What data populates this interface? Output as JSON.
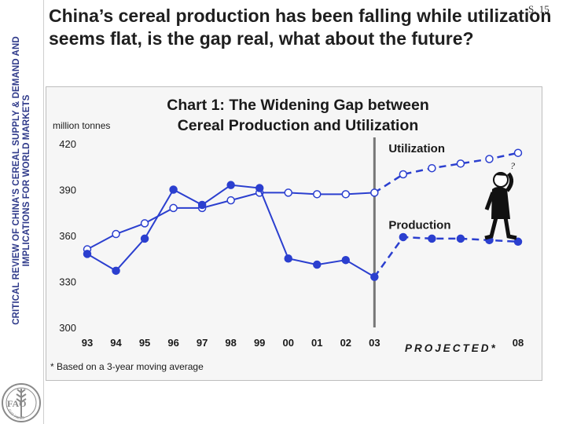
{
  "sidebar": {
    "line1": "CRITICAL REVIEW OF CHINA'S CEREAL SUPPLY & DEMAND AND",
    "line2": "IMPLICATIONS FOR WORLD MARKETS",
    "logo_text": "FAO",
    "logo_motto": "FIAT PANIS"
  },
  "slide": {
    "title": "China’s cereal production has been falling while utilization seems flat, is the gap real, what about the future?",
    "number": "S. 15"
  },
  "chart_data": {
    "type": "line",
    "title_line1": "Chart 1: The Widening Gap between",
    "title_line2": "Cereal Production and Utilization",
    "ylabel": "million tonnes",
    "ylim": [
      300,
      420
    ],
    "yticks": [
      "420",
      "390",
      "360",
      "330",
      "300"
    ],
    "categories": [
      "93",
      "94",
      "95",
      "96",
      "97",
      "98",
      "99",
      "00",
      "01",
      "02",
      "03",
      "",
      "",
      "",
      "",
      "08"
    ],
    "projection_start": "03",
    "projected_label": "PROJECTED*",
    "footnote": "* Based on a 3-year moving average",
    "series": [
      {
        "name": "Utilization",
        "color": "#2b3fcf",
        "marker": "hollow",
        "values": [
          351,
          361,
          368,
          378,
          378,
          383,
          388,
          388,
          387,
          387,
          388,
          400,
          404,
          407,
          410,
          414
        ]
      },
      {
        "name": "Production",
        "color": "#2b3fcf",
        "marker": "filled",
        "values": [
          348,
          337,
          358,
          390,
          380,
          393,
          391,
          345,
          341,
          344,
          333,
          359,
          358,
          358,
          357,
          356
        ]
      }
    ],
    "cartoon_annotation": "?"
  }
}
